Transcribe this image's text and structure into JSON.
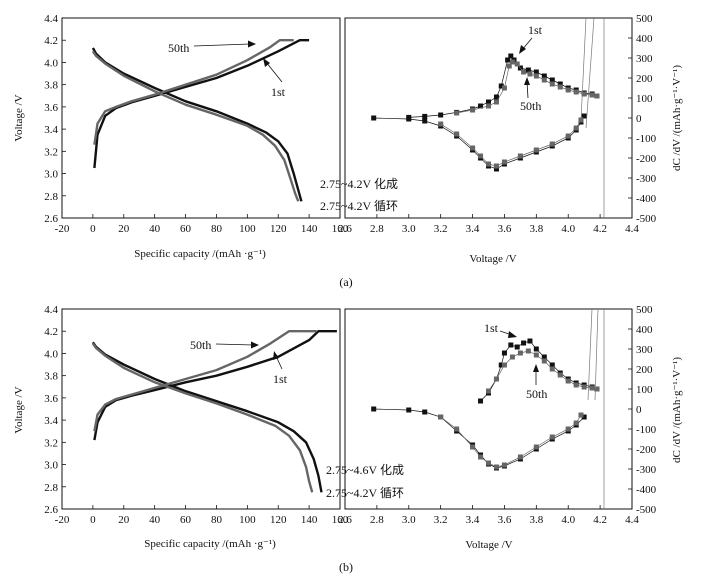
{
  "figure": {
    "panels": [
      {
        "label": "(a)",
        "legend_lines": [
          "2.75~4.2V 化成",
          "2.75~4.2V 循环"
        ],
        "annot_left_50th": "50th",
        "annot_left_1st": "1st",
        "annot_right_1st": "1st",
        "annot_right_50th": "50th"
      },
      {
        "label": "(b)",
        "legend_lines": [
          "2.75~4.6V 化成",
          "2.75~4.2V 循环"
        ],
        "annot_left_50th": "50th",
        "annot_left_1st": "1st",
        "annot_right_1st": "1st",
        "annot_right_50th": "50th"
      }
    ]
  },
  "chart_data": [
    {
      "panel": "(a)",
      "plot": "charge-discharge",
      "type": "line",
      "xlabel": "Specific capacity /(mAh ·g⁻¹)",
      "ylabel": "Voltage /V",
      "xlim": [
        -20,
        160
      ],
      "ylim": [
        2.6,
        4.4
      ],
      "xticks": [
        -20,
        0,
        20,
        40,
        60,
        80,
        100,
        120,
        140,
        160
      ],
      "yticks": [
        2.6,
        2.8,
        3.0,
        3.2,
        3.4,
        3.6,
        3.8,
        4.0,
        4.2,
        4.4
      ],
      "series": [
        {
          "name": "1st charge",
          "color": "#111111",
          "x": [
            1,
            3,
            8,
            15,
            25,
            40,
            60,
            80,
            100,
            120,
            134,
            140
          ],
          "y": [
            3.05,
            3.35,
            3.52,
            3.59,
            3.64,
            3.7,
            3.78,
            3.86,
            3.97,
            4.1,
            4.2,
            4.2
          ]
        },
        {
          "name": "1st discharge",
          "color": "#111111",
          "x": [
            0,
            2,
            8,
            20,
            40,
            60,
            80,
            100,
            112,
            120,
            126,
            130,
            133,
            135
          ],
          "y": [
            4.13,
            4.08,
            4.0,
            3.9,
            3.77,
            3.65,
            3.56,
            3.45,
            3.37,
            3.29,
            3.18,
            3.0,
            2.85,
            2.75
          ]
        },
        {
          "name": "50th charge",
          "color": "#666666",
          "x": [
            1,
            3,
            8,
            15,
            25,
            40,
            60,
            80,
            100,
            115,
            121,
            130
          ],
          "y": [
            3.26,
            3.45,
            3.56,
            3.6,
            3.65,
            3.71,
            3.8,
            3.89,
            4.02,
            4.14,
            4.2,
            4.2
          ]
        },
        {
          "name": "50th discharge",
          "color": "#666666",
          "x": [
            0,
            2,
            8,
            20,
            40,
            60,
            80,
            100,
            110,
            118,
            124,
            128,
            131,
            133
          ],
          "y": [
            4.1,
            4.06,
            3.99,
            3.88,
            3.74,
            3.62,
            3.53,
            3.43,
            3.35,
            3.25,
            3.12,
            2.95,
            2.82,
            2.75
          ]
        }
      ]
    },
    {
      "panel": "(a)",
      "plot": "dC/dV",
      "type": "scatter",
      "xlabel": "Voltage /V",
      "ylabel": "dC /dV /(mAh·g⁻¹·V⁻¹)",
      "xlim": [
        2.6,
        4.4
      ],
      "ylim": [
        -500,
        500
      ],
      "xticks": [
        2.6,
        2.8,
        3.0,
        3.2,
        3.4,
        3.6,
        3.8,
        4.0,
        4.2,
        4.4
      ],
      "yticks": [
        -500,
        -400,
        -300,
        -200,
        -100,
        0,
        100,
        200,
        300,
        400,
        500
      ],
      "series": [
        {
          "name": "1st charge",
          "color": "#111111",
          "x": [
            3.0,
            3.1,
            3.2,
            3.3,
            3.4,
            3.45,
            3.5,
            3.55,
            3.58,
            3.62,
            3.64,
            3.66,
            3.7,
            3.75,
            3.8,
            3.85,
            3.9,
            3.95,
            4.0,
            4.05,
            4.1,
            4.15,
            4.18
          ],
          "y": [
            3,
            8,
            15,
            28,
            45,
            60,
            80,
            105,
            160,
            290,
            310,
            290,
            250,
            240,
            230,
            210,
            190,
            170,
            150,
            140,
            125,
            120,
            110
          ]
        },
        {
          "name": "50th charge",
          "color": "#666666",
          "x": [
            3.3,
            3.4,
            3.5,
            3.55,
            3.6,
            3.63,
            3.65,
            3.68,
            3.72,
            3.76,
            3.8,
            3.85,
            3.9,
            3.95,
            4.0,
            4.05,
            4.1,
            4.15,
            4.18
          ],
          "y": [
            25,
            40,
            60,
            80,
            150,
            260,
            280,
            270,
            230,
            220,
            210,
            190,
            170,
            155,
            140,
            130,
            120,
            115,
            110
          ]
        },
        {
          "name": "1st discharge",
          "color": "#111111",
          "x": [
            2.78,
            3.0,
            3.1,
            3.2,
            3.3,
            3.4,
            3.45,
            3.5,
            3.55,
            3.6,
            3.7,
            3.8,
            3.9,
            4.0,
            4.05,
            4.08,
            4.1
          ],
          "y": [
            0,
            -5,
            -15,
            -40,
            -90,
            -160,
            -200,
            -240,
            -255,
            -230,
            -200,
            -170,
            -140,
            -100,
            -60,
            -20,
            10
          ]
        },
        {
          "name": "50th discharge",
          "color": "#666666",
          "x": [
            3.2,
            3.3,
            3.4,
            3.45,
            3.5,
            3.55,
            3.6,
            3.7,
            3.8,
            3.9,
            4.0,
            4.05,
            4.08
          ],
          "y": [
            -30,
            -80,
            -150,
            -190,
            -230,
            -240,
            -220,
            -190,
            -160,
            -130,
            -90,
            -50,
            -10
          ]
        }
      ]
    },
    {
      "panel": "(b)",
      "plot": "charge-discharge",
      "type": "line",
      "xlabel": "Specific capacity /(mAh ·g⁻¹)",
      "ylabel": "Voltage /V",
      "xlim": [
        -20,
        160
      ],
      "ylim": [
        2.6,
        4.4
      ],
      "xticks": [
        -20,
        0,
        20,
        40,
        60,
        80,
        100,
        120,
        140,
        160
      ],
      "yticks": [
        2.6,
        2.8,
        3.0,
        3.2,
        3.4,
        3.6,
        3.8,
        4.0,
        4.2,
        4.4
      ],
      "series": [
        {
          "name": "1st charge",
          "color": "#111111",
          "x": [
            1,
            3,
            8,
            15,
            25,
            40,
            60,
            80,
            100,
            120,
            140,
            146,
            158
          ],
          "y": [
            3.22,
            3.38,
            3.52,
            3.58,
            3.62,
            3.67,
            3.74,
            3.8,
            3.88,
            3.97,
            4.12,
            4.2,
            4.2
          ]
        },
        {
          "name": "1st discharge",
          "color": "#111111",
          "x": [
            0,
            2,
            8,
            20,
            40,
            60,
            80,
            100,
            120,
            130,
            138,
            143,
            146,
            148
          ],
          "y": [
            4.1,
            4.06,
            3.99,
            3.9,
            3.77,
            3.66,
            3.57,
            3.48,
            3.38,
            3.3,
            3.2,
            3.05,
            2.9,
            2.75
          ]
        },
        {
          "name": "50th charge",
          "color": "#666666",
          "x": [
            1,
            3,
            8,
            15,
            25,
            40,
            60,
            80,
            100,
            115,
            127,
            145
          ],
          "y": [
            3.3,
            3.45,
            3.54,
            3.59,
            3.63,
            3.69,
            3.77,
            3.85,
            3.97,
            4.09,
            4.2,
            4.2
          ]
        },
        {
          "name": "50th discharge",
          "color": "#666666",
          "x": [
            0,
            2,
            8,
            20,
            40,
            60,
            80,
            100,
            118,
            127,
            134,
            138,
            140,
            142
          ],
          "y": [
            4.09,
            4.05,
            3.98,
            3.87,
            3.74,
            3.64,
            3.55,
            3.45,
            3.35,
            3.26,
            3.13,
            2.98,
            2.85,
            2.75
          ]
        }
      ]
    },
    {
      "panel": "(b)",
      "plot": "dC/dV",
      "type": "scatter",
      "xlabel": "Voltage /V",
      "ylabel": "dC /dV /(mAh·g⁻¹·V⁻¹)",
      "xlim": [
        2.6,
        4.4
      ],
      "ylim": [
        -500,
        500
      ],
      "xticks": [
        2.6,
        2.8,
        3.0,
        3.2,
        3.4,
        3.6,
        3.8,
        4.0,
        4.2,
        4.4
      ],
      "yticks": [
        -500,
        -400,
        -300,
        -200,
        -100,
        0,
        100,
        200,
        300,
        400,
        500
      ],
      "series": [
        {
          "name": "1st charge",
          "color": "#111111",
          "x": [
            3.45,
            3.5,
            3.55,
            3.58,
            3.6,
            3.64,
            3.68,
            3.72,
            3.76,
            3.8,
            3.85,
            3.9,
            3.95,
            4.0,
            4.05,
            4.1,
            4.15,
            4.18
          ],
          "y": [
            40,
            80,
            150,
            220,
            280,
            320,
            310,
            330,
            340,
            300,
            260,
            220,
            180,
            150,
            130,
            120,
            110,
            100
          ]
        },
        {
          "name": "50th charge",
          "color": "#666666",
          "x": [
            3.5,
            3.55,
            3.6,
            3.65,
            3.7,
            3.75,
            3.8,
            3.85,
            3.9,
            3.95,
            4.0,
            4.05,
            4.1,
            4.15,
            4.18
          ],
          "y": [
            90,
            150,
            220,
            260,
            280,
            290,
            270,
            240,
            200,
            170,
            140,
            120,
            110,
            105,
            100
          ]
        },
        {
          "name": "1st discharge",
          "color": "#111111",
          "x": [
            2.78,
            3.0,
            3.1,
            3.2,
            3.3,
            3.4,
            3.45,
            3.5,
            3.55,
            3.6,
            3.7,
            3.8,
            3.9,
            4.0,
            4.05,
            4.1
          ],
          "y": [
            0,
            -5,
            -15,
            -40,
            -110,
            -180,
            -230,
            -275,
            -295,
            -285,
            -250,
            -200,
            -150,
            -110,
            -80,
            -40
          ]
        },
        {
          "name": "50th discharge",
          "color": "#666666",
          "x": [
            3.2,
            3.3,
            3.4,
            3.45,
            3.5,
            3.55,
            3.6,
            3.7,
            3.8,
            3.9,
            4.0,
            4.05,
            4.08
          ],
          "y": [
            -40,
            -100,
            -190,
            -240,
            -270,
            -290,
            -280,
            -240,
            -190,
            -140,
            -100,
            -70,
            -30
          ]
        }
      ]
    }
  ]
}
